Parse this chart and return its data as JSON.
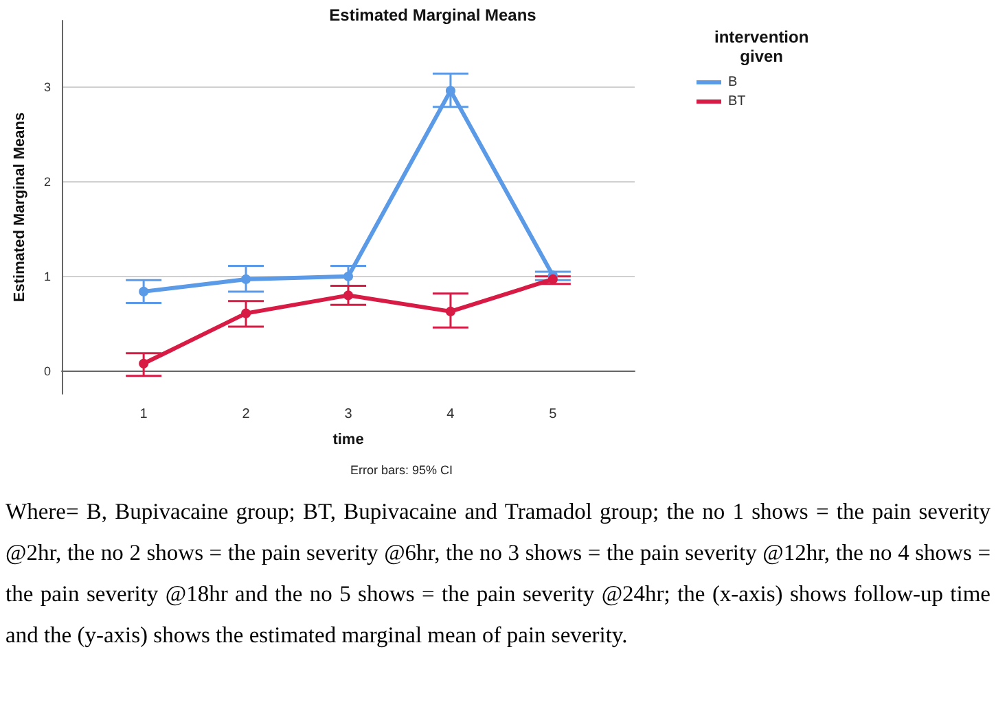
{
  "chart_data": {
    "type": "line",
    "title": "Estimated Marginal Means",
    "xlabel": "time",
    "ylabel": "Estimated Marginal Means",
    "legend_title": "intervention given",
    "x": [
      1,
      2,
      3,
      4,
      5
    ],
    "xlim": [
      0.2,
      5.8
    ],
    "xticks": [
      1,
      2,
      3,
      4,
      5
    ],
    "ylim": [
      -0.24,
      3.7
    ],
    "yticks": [
      0,
      1,
      2,
      3
    ],
    "series": [
      {
        "name": "B",
        "color": "#5b9ae6",
        "values": [
          0.84,
          0.97,
          1.0,
          2.96,
          1.01
        ],
        "errors": [
          [
            0.72,
            0.96
          ],
          [
            0.84,
            1.11
          ],
          [
            0.9,
            1.11
          ],
          [
            2.79,
            3.14
          ],
          [
            0.96,
            1.05
          ]
        ]
      },
      {
        "name": "BT",
        "color": "#d81b45",
        "values": [
          0.08,
          0.61,
          0.8,
          0.63,
          0.97
        ],
        "errors": [
          [
            -0.05,
            0.19
          ],
          [
            0.47,
            0.74
          ],
          [
            0.7,
            0.9
          ],
          [
            0.46,
            0.82
          ],
          [
            0.92,
            1.0
          ]
        ]
      }
    ],
    "marker": "circle",
    "grid": "y",
    "legend": "top right",
    "annotations": [
      "Error bars: 95% CI",
      "Where= B, Bupivacaine group; BT, Bupivacaine and Tramadol group; the no 1 shows = the pain severity @2hr, the no 2 shows = the pain severity @6hr, the no 3 shows = the pain severity @12hr, the no 4 shows = the pain severity @18hr and the no 5 shows = the pain severity @24hr; the (x-axis) shows follow-up time and the (y-axis) shows the estimated marginal mean of pain severity."
    ]
  }
}
